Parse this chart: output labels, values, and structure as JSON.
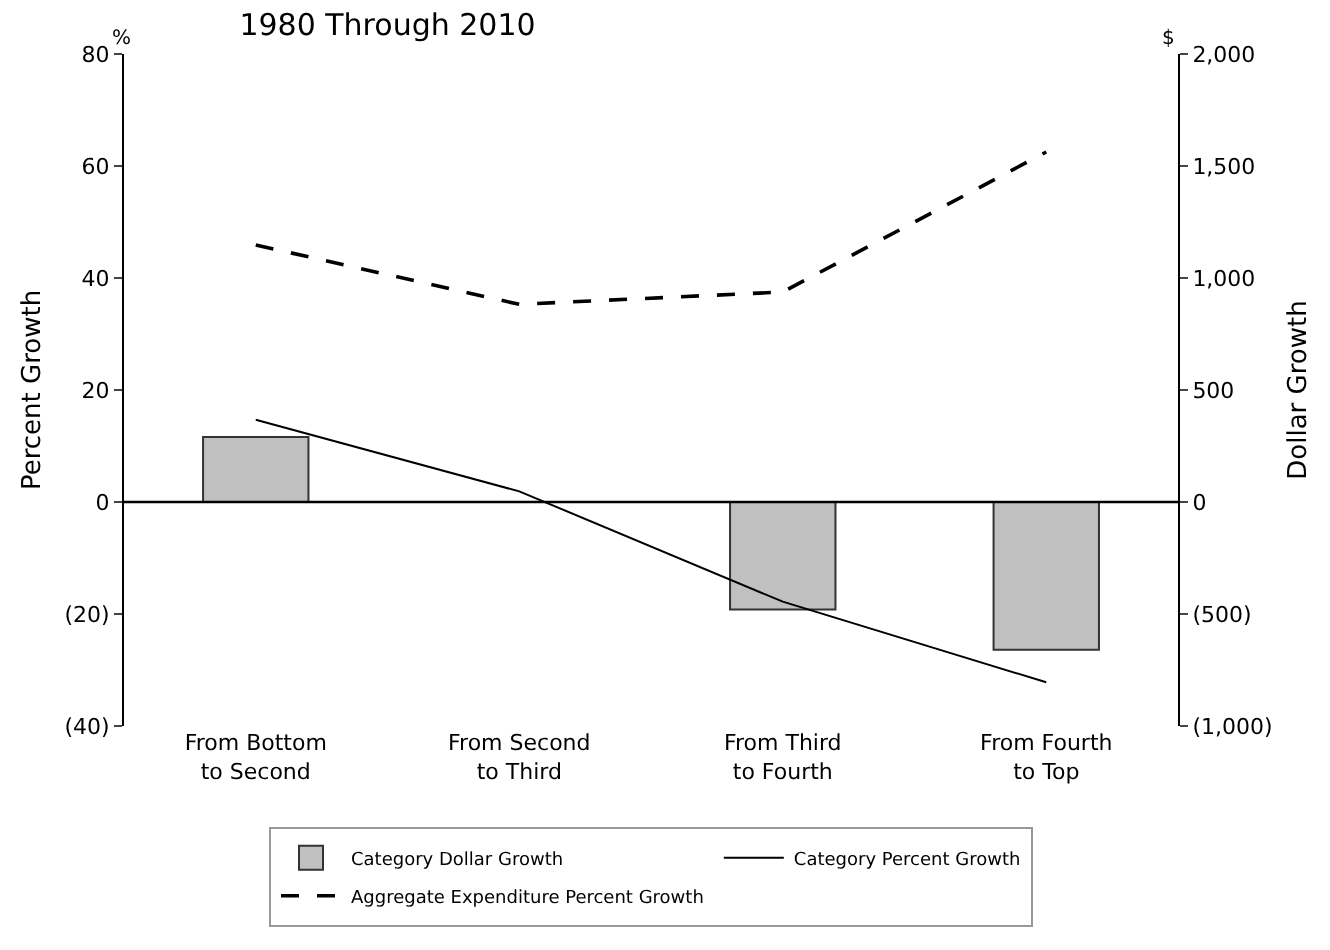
{
  "chart_data": {
    "type": "bar",
    "title": "1980 Through 2010",
    "ylabel": "Percent Growth",
    "y2label": "Dollar Growth",
    "categories": [
      "From Bottom\nto Second",
      "From Second\nto Third",
      "From Third\nto Fourth",
      "From Fourth\nto Top"
    ],
    "series": [
      {
        "name": "Category Dollar Growth",
        "axis": "y2",
        "color": "#c0c0c0",
        "values": [
          290,
          null,
          -480,
          -660
        ]
      },
      {
        "name": "Category Percent Growth",
        "type": "line",
        "axis": "y",
        "color": "#000000",
        "line_style": "solid",
        "values": [
          14.7,
          1.9,
          -17.8,
          -32.2
        ]
      },
      {
        "name": "Aggregate Expenditure Percent Growth",
        "type": "line",
        "axis": "y",
        "color": "#000000",
        "line_style": "dashed",
        "values": [
          45.9,
          35.3,
          37.5,
          62.5
        ]
      }
    ],
    "ylim": [
      -40,
      80
    ],
    "yticks": [
      {
        "value": -40,
        "label": "(40)"
      },
      {
        "value": -20,
        "label": "(20)"
      },
      0,
      20,
      40,
      60,
      80
    ],
    "y2lim": [
      -1000,
      2000
    ],
    "y2ticks": [
      {
        "value": -1000,
        "label": "(1,000)"
      },
      {
        "value": -500,
        "label": "(500)"
      },
      0,
      500,
      {
        "value": 1000,
        "label": "1,000"
      },
      {
        "value": 1500,
        "label": "1,500"
      },
      {
        "value": 2000,
        "label": "2,000"
      }
    ],
    "annotations": [
      "%",
      "$"
    ],
    "ref_lines": [
      {
        "axis": "y",
        "value": 0
      }
    ],
    "legend": "bottom",
    "marker": "none"
  }
}
